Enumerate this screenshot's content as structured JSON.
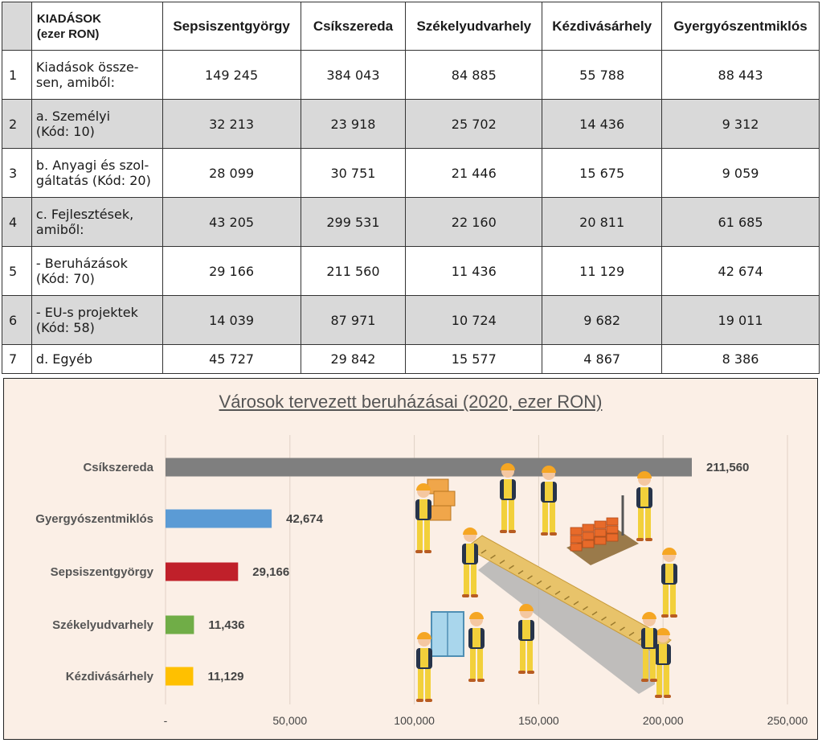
{
  "table": {
    "header": {
      "title_line1": "KIADÁSOK",
      "title_line2": "(ezer RON)",
      "columns": [
        "Sepsiszentgyörgy",
        "Csíkszereda",
        "Székelyudvarhely",
        "Kézdivásárhely",
        "Gyergyószentmiklós"
      ]
    },
    "rows": [
      {
        "n": "1",
        "l1": "Kiadások össze-",
        "l2": "sen, amiből:",
        "vals": [
          "149 245",
          "384 043",
          "84 885",
          "55 788",
          "88 443"
        ]
      },
      {
        "n": "2",
        "l1": "a. Személyi",
        "l2": "(Kód: 10)",
        "vals": [
          "32 213",
          "23 918",
          "25 702",
          "14 436",
          "9 312"
        ]
      },
      {
        "n": "3",
        "l1": "b. Anyagi és szol-",
        "l2": "gáltatás (Kód: 20)",
        "vals": [
          "28 099",
          "30 751",
          "21 446",
          "15 675",
          "9 059"
        ]
      },
      {
        "n": "4",
        "l1": "c. Fejlesztések,",
        "l2": "amiből:",
        "vals": [
          "43 205",
          "299 531",
          "22 160",
          "20 811",
          "61 685"
        ]
      },
      {
        "n": "5",
        "l1": " - Beruházások",
        "l2": "(Kód: 70)",
        "vals": [
          "29 166",
          "211 560",
          "11 436",
          "11 129",
          "42 674"
        ]
      },
      {
        "n": "6",
        "l1": " - EU-s projektek",
        "l2": "(Kód: 58)",
        "vals": [
          "14 039",
          "87 971",
          "10 724",
          "9 682",
          "19 011"
        ]
      },
      {
        "n": "7",
        "l1": "d. Egyéb",
        "l2": "",
        "vals": [
          "45 727",
          "29 842",
          "15 577",
          "4 867",
          "8 386"
        ]
      }
    ]
  },
  "chart_data": {
    "type": "bar",
    "orientation": "horizontal",
    "title": "Városok tervezett beruházásai (2020, ezer RON)",
    "categories": [
      "Csíkszereda",
      "Gyergyószentmiklós",
      "Sepsiszentgyörgy",
      "Székelyudvarhely",
      "Kézdivásárhely"
    ],
    "values": [
      211560,
      42674,
      29166,
      11436,
      11129
    ],
    "value_labels": [
      "211,560",
      "42,674",
      "29,166",
      "11,436",
      "11,129"
    ],
    "colors": [
      "#7f7f7f",
      "#5b9bd5",
      "#c0202a",
      "#70ad47",
      "#ffc000"
    ],
    "xlim": [
      0,
      250000
    ],
    "x_ticks": [
      0,
      50000,
      100000,
      150000,
      200000,
      250000
    ],
    "x_tick_labels": [
      "-",
      "50,000",
      "100,000",
      "150,000",
      "200,000",
      "250,000"
    ],
    "grid": true
  }
}
